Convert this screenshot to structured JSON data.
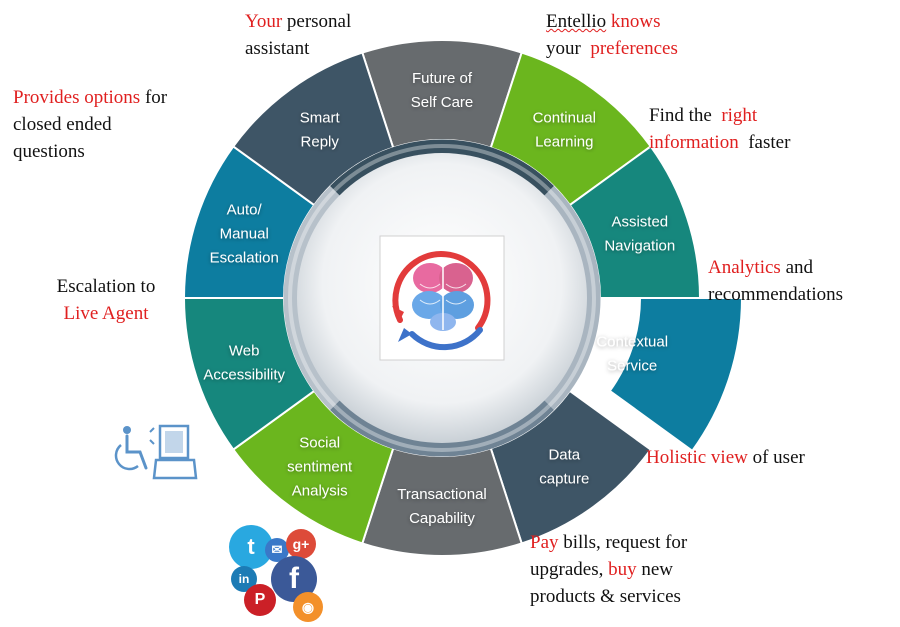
{
  "colors": {
    "slate": "#3e5566",
    "grey": "#676b6e",
    "green": "#6bb61e",
    "teal": "#16877d",
    "blue": "#0d7da0",
    "accent_red": "#e02020"
  },
  "segments": [
    {
      "id": "future",
      "label_lines": [
        "Future of",
        "Self Care"
      ],
      "color": "#676b6e"
    },
    {
      "id": "continual",
      "label_lines": [
        "Continual",
        "Learning"
      ],
      "color": "#6bb61e"
    },
    {
      "id": "assisted",
      "label_lines": [
        "Assisted",
        "Navigation"
      ],
      "color": "#16877d"
    },
    {
      "id": "contextual",
      "label_lines": [
        "Contextual",
        "Service"
      ],
      "color": "#0d7da0"
    },
    {
      "id": "datacapture",
      "label_lines": [
        "Data",
        "capture"
      ],
      "color": "#3e5566"
    },
    {
      "id": "transactional",
      "label_lines": [
        "Transactional",
        "Capability"
      ],
      "color": "#676b6e"
    },
    {
      "id": "social",
      "label_lines": [
        "Social",
        "sentiment",
        "Analysis"
      ],
      "color": "#6bb61e"
    },
    {
      "id": "web",
      "label_lines": [
        "Web",
        "Accessibility"
      ],
      "color": "#16877d"
    },
    {
      "id": "auto",
      "label_lines": [
        "Auto/",
        "Manual",
        "Escalation"
      ],
      "color": "#0d7da0"
    },
    {
      "id": "smart",
      "label_lines": [
        "Smart",
        "Reply"
      ],
      "color": "#3e5566"
    }
  ],
  "callouts": {
    "personal": {
      "red": "Your",
      "rest": " personal",
      "line2": "assistant"
    },
    "knows": {
      "w1": "Entellio",
      "red1": "knows",
      "w2": "your",
      "red2": "preferences"
    },
    "find": {
      "pre": "Find the ",
      "red1": "right",
      "red2": "information",
      "post": " faster"
    },
    "analytics": {
      "red": "Analytics",
      "rest": " and",
      "line2": "recommendations"
    },
    "holistic": {
      "red": "Holistic view",
      "rest": " of user"
    },
    "pay": {
      "red1": "Pay",
      "mid1": " bills,  request for",
      "pre2": "upgrades, ",
      "red2": "buy",
      "mid2": "  new",
      "line3": "products  & services"
    },
    "provides": {
      "red": "Provides options",
      "rest": " for",
      "line2": "closed ended",
      "line3": "questions"
    },
    "escalation": {
      "line1": "Escalation to",
      "red": "Live Agent"
    }
  },
  "social_icons": [
    {
      "name": "twitter",
      "glyph": "t",
      "color": "#29a8e0"
    },
    {
      "name": "mail",
      "glyph": "✉",
      "color": "#3a78c8"
    },
    {
      "name": "google-plus",
      "glyph": "g+",
      "color": "#dd4b39"
    },
    {
      "name": "linkedin",
      "glyph": "in",
      "color": "#1c7bb5"
    },
    {
      "name": "facebook",
      "glyph": "f",
      "color": "#3b5998"
    },
    {
      "name": "pinterest",
      "glyph": "P",
      "color": "#cb2027"
    },
    {
      "name": "rss",
      "glyph": "◉",
      "color": "#f3902a"
    }
  ]
}
